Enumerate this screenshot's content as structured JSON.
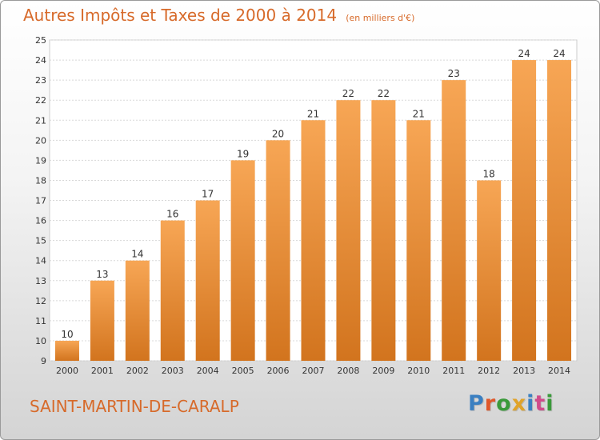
{
  "title": "Autres Impôts et Taxes de 2000 à 2014",
  "subtitle": "(en milliers d'€)",
  "location": "SAINT-MARTIN-DE-CARALP",
  "brand": {
    "text": "Proxiti",
    "letter_colors": [
      "#3a7fc1",
      "#e0582a",
      "#3a9a3a",
      "#e0a32a",
      "#3a7fc1",
      "#d04a8a",
      "#3a9a3a"
    ]
  },
  "colors": {
    "bar_light": "#f7a655",
    "bar_dark": "#d2741e",
    "accent": "#d76a2a"
  },
  "chart_data": {
    "type": "bar",
    "categories": [
      "2000",
      "2001",
      "2002",
      "2003",
      "2004",
      "2005",
      "2006",
      "2007",
      "2008",
      "2009",
      "2010",
      "2011",
      "2012",
      "2013",
      "2014"
    ],
    "values": [
      10,
      13,
      14,
      16,
      17,
      19,
      20,
      21,
      22,
      22,
      21,
      23,
      18,
      24,
      24
    ],
    "value_labels": [
      "10",
      "13",
      "14",
      "16",
      "17",
      "19",
      "20",
      "21",
      "22",
      "22",
      "21",
      "23",
      "18",
      "24",
      "24"
    ],
    "ylim": [
      9,
      25
    ],
    "yticks": [
      "9",
      "10",
      "11",
      "12",
      "13",
      "14",
      "15",
      "16",
      "17",
      "18",
      "19",
      "20",
      "21",
      "22",
      "23",
      "24",
      "25"
    ],
    "grid": true,
    "xlabel": "",
    "ylabel": ""
  }
}
